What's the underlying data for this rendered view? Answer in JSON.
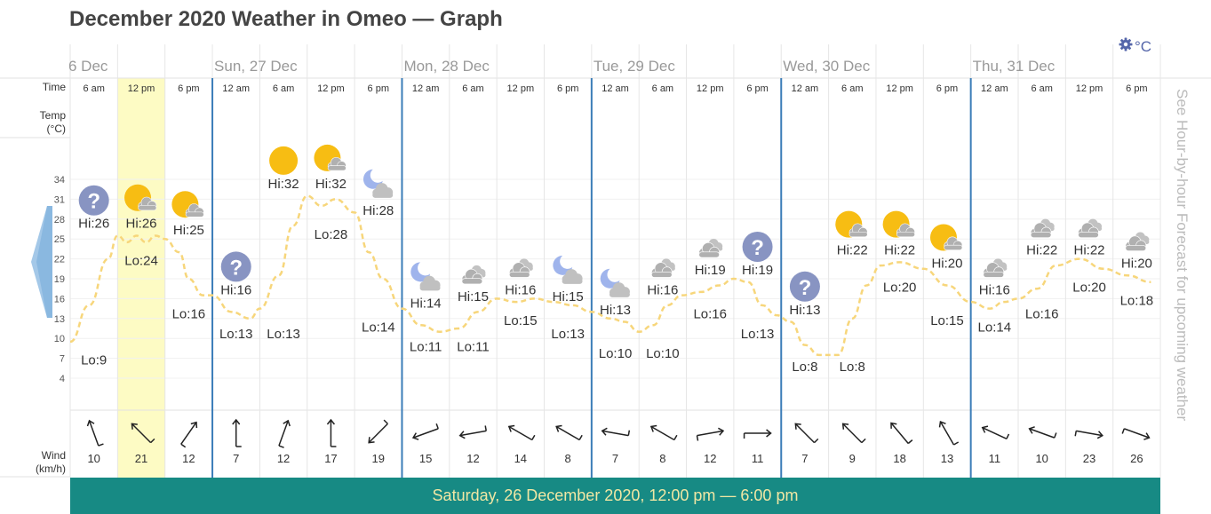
{
  "page": {
    "title": "December 2020 Weather in Omeo — Graph",
    "unit_label": "°C",
    "settings_icon": "gear-icon",
    "side_link": "See Hour-by-hour Forecast for upcoming weather",
    "footer": "Saturday, 26 December 2020, 12:00 pm — 6:00 pm",
    "row_labels": {
      "time": "Time",
      "temp": "Temp",
      "temp_unit": "(°C)",
      "wind": "Wind",
      "wind_unit": "(km/h)"
    },
    "colors": {
      "highlight": "#fdfbc4",
      "footer_bg": "#178a84",
      "footer_text": "#f1e7a4",
      "temp_line": "#f7d67b",
      "day_divider": "#3b7db8",
      "icon_accent": "#5566aa"
    }
  },
  "chart_data": {
    "type": "line",
    "yticks": [
      4,
      7,
      10,
      13,
      16,
      19,
      22,
      25,
      28,
      31,
      34
    ],
    "ylim": [
      4,
      34
    ],
    "days": [
      {
        "label": "6 Dec",
        "start": 0
      },
      {
        "label": "Sun, 27 Dec",
        "start": 3
      },
      {
        "label": "Mon, 28 Dec",
        "start": 7
      },
      {
        "label": "Tue, 29 Dec",
        "start": 11
      },
      {
        "label": "Wed, 30 Dec",
        "start": 15
      },
      {
        "label": "Thu, 31 Dec",
        "start": 19
      }
    ],
    "highlight_index": 1,
    "periods": [
      {
        "time": "6 am",
        "icon": "unknown-icon",
        "hi": 26,
        "lo": 9,
        "wind": 10,
        "dir": 160
      },
      {
        "time": "12 pm",
        "icon": "sun-cloud-icon",
        "hi": 26,
        "lo": 24,
        "wind": 21,
        "dir": 135
      },
      {
        "time": "6 pm",
        "icon": "sun-cloud-icon",
        "hi": 25,
        "lo": 16,
        "wind": 12,
        "dir": 215
      },
      {
        "time": "12 am",
        "icon": "unknown-icon",
        "hi": 16,
        "lo": 13,
        "wind": 7,
        "dir": 180
      },
      {
        "time": "6 am",
        "icon": "sun-icon",
        "hi": 32,
        "lo": 13,
        "wind": 12,
        "dir": 200
      },
      {
        "time": "12 pm",
        "icon": "sun-cloud-icon",
        "hi": 32,
        "lo": 28,
        "wind": 17,
        "dir": 180
      },
      {
        "time": "6 pm",
        "icon": "moon-cloud-icon",
        "hi": 28,
        "lo": 14,
        "wind": 19,
        "dir": 45
      },
      {
        "time": "12 am",
        "icon": "moon-cloud-icon",
        "hi": 14,
        "lo": 11,
        "wind": 15,
        "dir": 70
      },
      {
        "time": "6 am",
        "icon": "cloud-icon",
        "hi": 15,
        "lo": 11,
        "wind": 12,
        "dir": 80
      },
      {
        "time": "12 pm",
        "icon": "cloud-icon",
        "hi": 16,
        "lo": 15,
        "wind": 14,
        "dir": 120
      },
      {
        "time": "6 pm",
        "icon": "moon-cloud-icon",
        "hi": 15,
        "lo": 13,
        "wind": 8,
        "dir": 120
      },
      {
        "time": "12 am",
        "icon": "moon-cloud-icon",
        "hi": 13,
        "lo": 10,
        "wind": 7,
        "dir": 100
      },
      {
        "time": "6 am",
        "icon": "cloud-icon",
        "hi": 16,
        "lo": 10,
        "wind": 8,
        "dir": 120
      },
      {
        "time": "12 pm",
        "icon": "cloud-icon",
        "hi": 19,
        "lo": 16,
        "wind": 12,
        "dir": 260
      },
      {
        "time": "6 pm",
        "icon": "unknown-icon",
        "hi": 19,
        "lo": 13,
        "wind": 11,
        "dir": 270
      },
      {
        "time": "12 am",
        "icon": "unknown-icon",
        "hi": 13,
        "lo": 8,
        "wind": 7,
        "dir": 135
      },
      {
        "time": "6 am",
        "icon": "sun-cloud-icon",
        "hi": 22,
        "lo": 8,
        "wind": 9,
        "dir": 135
      },
      {
        "time": "12 pm",
        "icon": "sun-cloud-icon",
        "hi": 22,
        "lo": 20,
        "wind": 18,
        "dir": 140
      },
      {
        "time": "6 pm",
        "icon": "sun-cloud-icon",
        "hi": 20,
        "lo": 15,
        "wind": 13,
        "dir": 150
      },
      {
        "time": "12 am",
        "icon": "cloud-icon",
        "hi": 16,
        "lo": 14,
        "wind": 11,
        "dir": 115
      },
      {
        "time": "6 am",
        "icon": "cloud-icon",
        "hi": 22,
        "lo": 16,
        "wind": 10,
        "dir": 110
      },
      {
        "time": "12 pm",
        "icon": "cloud-icon",
        "hi": 22,
        "lo": 20,
        "wind": 23,
        "dir": 280
      },
      {
        "time": "6 pm",
        "icon": "cloud-icon",
        "hi": 20,
        "lo": 18,
        "wind": 26,
        "dir": 290
      }
    ],
    "temps": [
      [
        0,
        9.5
      ],
      [
        0.4,
        15
      ],
      [
        0.8,
        22
      ],
      [
        1.0,
        25.5
      ],
      [
        1.2,
        24.5
      ],
      [
        1.4,
        25.5
      ],
      [
        1.6,
        24.5
      ],
      [
        1.8,
        25.5
      ],
      [
        2.0,
        25
      ],
      [
        2.3,
        23
      ],
      [
        2.5,
        19
      ],
      [
        2.8,
        16.5
      ],
      [
        3.0,
        16.5
      ],
      [
        3.4,
        14
      ],
      [
        3.8,
        13
      ],
      [
        4.0,
        14.5
      ],
      [
        4.4,
        19.5
      ],
      [
        4.7,
        27
      ],
      [
        5.0,
        31.5
      ],
      [
        5.3,
        30
      ],
      [
        5.6,
        31
      ],
      [
        6.0,
        29
      ],
      [
        6.3,
        23
      ],
      [
        6.6,
        19
      ],
      [
        7.0,
        14.5
      ],
      [
        7.4,
        12
      ],
      [
        7.8,
        11
      ],
      [
        8.2,
        11.5
      ],
      [
        8.6,
        14
      ],
      [
        9.0,
        16
      ],
      [
        9.4,
        15.5
      ],
      [
        9.8,
        16
      ],
      [
        10.2,
        15.5
      ],
      [
        10.6,
        15
      ],
      [
        11.0,
        14
      ],
      [
        11.4,
        13
      ],
      [
        11.7,
        12.5
      ],
      [
        12.0,
        11
      ],
      [
        12.3,
        12
      ],
      [
        12.6,
        15
      ],
      [
        12.9,
        16.5
      ],
      [
        13.3,
        17
      ],
      [
        13.7,
        18
      ],
      [
        14.0,
        19
      ],
      [
        14.3,
        18.5
      ],
      [
        14.6,
        15
      ],
      [
        14.9,
        13.5
      ],
      [
        15.2,
        12.5
      ],
      [
        15.5,
        9
      ],
      [
        15.8,
        7.5
      ],
      [
        16.2,
        7.5
      ],
      [
        16.5,
        13
      ],
      [
        16.8,
        18
      ],
      [
        17.1,
        21
      ],
      [
        17.5,
        21.5
      ],
      [
        18.0,
        20.5
      ],
      [
        18.5,
        18
      ],
      [
        19.0,
        15.5
      ],
      [
        19.4,
        14.5
      ],
      [
        19.7,
        15.5
      ],
      [
        20.0,
        16
      ],
      [
        20.4,
        17.5
      ],
      [
        20.8,
        21
      ],
      [
        21.3,
        22
      ],
      [
        21.8,
        20.5
      ],
      [
        22.3,
        19.5
      ],
      [
        22.8,
        18.5
      ]
    ]
  }
}
